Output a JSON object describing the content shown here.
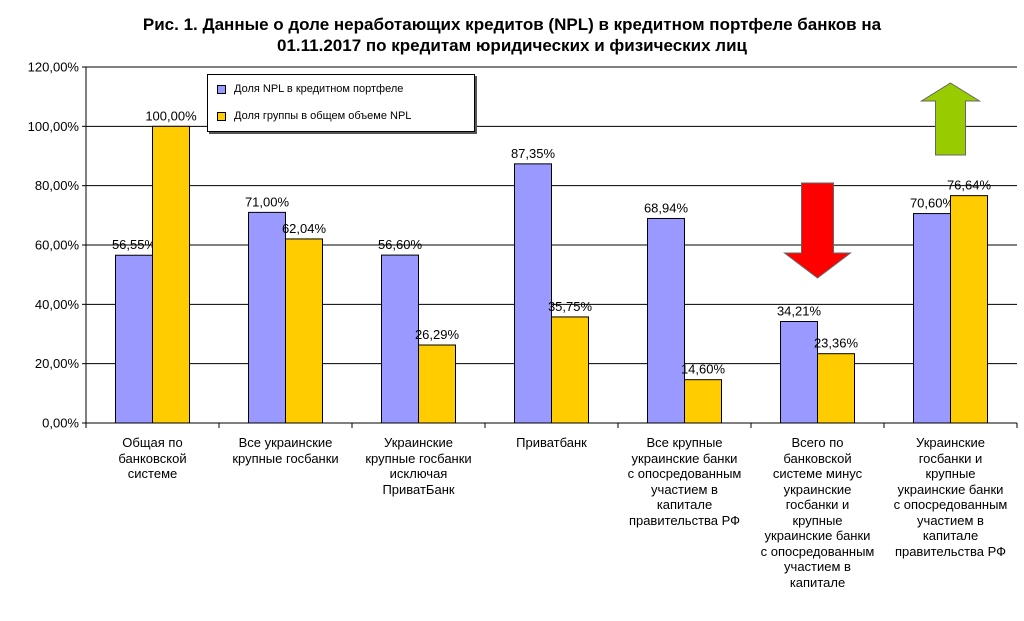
{
  "chart_data": {
    "type": "bar",
    "title_line1": "Рис. 1. Данные о доле неработающих кредитов (NPL) в кредитном портфеле банков на",
    "title_line2": "01.11.2017 по кредитам юридических и физических лиц",
    "categories": [
      "Общая по\nбанковской\nсистеме",
      "Все украинские\nкрупные госбанки",
      "Украинские\nкрупные госбанки\nисключая\nПриватБанк",
      "Приватбанк",
      "Все крупные\nукраинские банки\nс опосредованным\nучастием в\nкапитале\nправительства РФ",
      "Всего по\nбанковской\nсистеме минус\nукраинские\nгосбанки и\nкрупные\nукраинские банки\nс опосредованным\nучастием в\nкапитале",
      "Украинские\nгосбанки и\nкрупные\nукраинские банки\nс опосредованным\nучастием в\nкапитале\nправительства РФ"
    ],
    "series": [
      {
        "name": "Доля NPL в кредитном портфеле",
        "color": "#9999ff",
        "values": [
          56.55,
          71.0,
          56.6,
          87.35,
          68.94,
          34.21,
          70.6
        ],
        "labels": [
          "56,55%",
          "71,00%",
          "56,60%",
          "87,35%",
          "68,94%",
          "34,21%",
          "70,60%"
        ]
      },
      {
        "name": "Доля группы в общем объеме NPL",
        "color": "#ffcc00",
        "values": [
          100.0,
          62.04,
          26.29,
          35.75,
          14.6,
          23.36,
          76.64
        ],
        "labels": [
          "100,00%",
          "62,04%",
          "26,29%",
          "35,75%",
          "14,60%",
          "23,36%",
          "76,64%"
        ]
      }
    ],
    "ylim": [
      0,
      120
    ],
    "yticks": [
      0,
      20,
      40,
      60,
      80,
      100,
      120
    ],
    "ytick_labels": [
      "0,00%",
      "20,00%",
      "40,00%",
      "60,00%",
      "80,00%",
      "100,00%",
      "120,00%"
    ],
    "grid": true,
    "legend_position": "top-left",
    "annotations": [
      {
        "kind": "arrow-down",
        "color": "#ff0000",
        "category_index": 5
      },
      {
        "kind": "arrow-up",
        "color": "#99cc00",
        "category_index": 6
      }
    ]
  }
}
